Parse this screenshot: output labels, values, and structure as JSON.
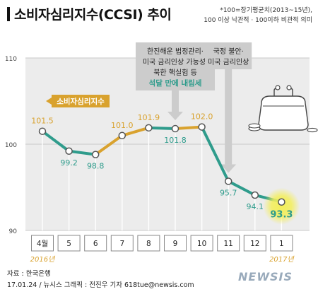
{
  "title": "소비자심리지수(CCSI) 추이",
  "note_line1": "*100=장기평균치(2013~15년),",
  "note_line2": "100 이상 낙관적 · 100이하 비관적 의미",
  "source_line1": "자료 : 한국은행",
  "source_line2": "17.01.24 / 뉴시스 그래픽 : 전진우 기자  618tue@newsis.com",
  "logo": "NEWSIS",
  "colors": {
    "rising": "#d9a22e",
    "falling": "#2f9c8c",
    "highlight_last": "#f3ee5a",
    "callout_bg": "#cccccc",
    "callout_accent": "#2f9c8c"
  },
  "chart_data": {
    "type": "line",
    "series_label": "소비자심리지수",
    "categories": [
      "4월",
      "5",
      "6",
      "7",
      "8",
      "9",
      "10",
      "11",
      "12",
      "1"
    ],
    "year_labels": [
      {
        "category_index": 0,
        "text": "2016년"
      },
      {
        "category_index": 9,
        "text": "2017년"
      }
    ],
    "values": [
      101.5,
      99.2,
      98.8,
      101.0,
      101.9,
      101.8,
      102.0,
      95.7,
      94.1,
      93.3
    ],
    "value_labels": [
      "101.5",
      "99.2",
      "98.8",
      "101.0",
      "101.9",
      "101.8",
      "102.0",
      "95.7",
      "94.1",
      "93.3"
    ],
    "ylim": [
      90,
      110
    ],
    "yticks": [
      90,
      100,
      110
    ],
    "grid": "horizontal",
    "annotations": [
      {
        "category_index": 5,
        "lines": [
          "한진해운 법정관리·",
          "미국 금리인상 가능성·",
          "북한 핵실험 등"
        ],
        "emphasis": "석달 만에 내림세"
      },
      {
        "category_index": 7,
        "lines": [
          "국정 불안·",
          "미국 금리인상"
        ],
        "emphasis": ""
      }
    ]
  }
}
